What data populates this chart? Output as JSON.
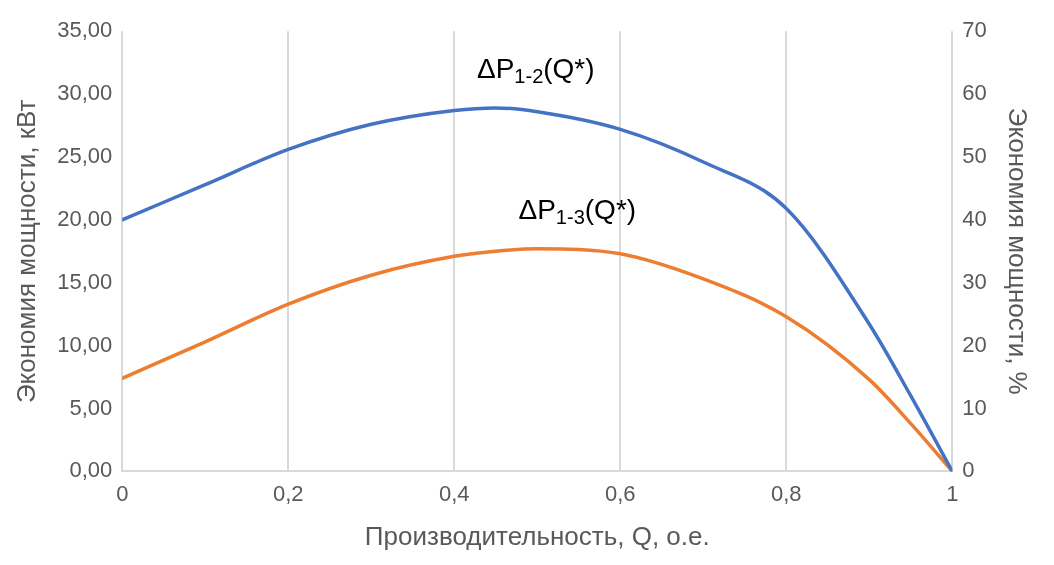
{
  "chart_data": {
    "type": "line",
    "xlabel": "Производительность, Q, о.е.",
    "ylabel": "Экономия мощности, кВт",
    "y2label": "Экономия мощности, %",
    "x": [
      0,
      0.1,
      0.2,
      0.3,
      0.4,
      0.45,
      0.5,
      0.6,
      0.7,
      0.8,
      0.9,
      0.95,
      1
    ],
    "series": [
      {
        "color": "#4472c4",
        "values": [
          20.0,
          22.8,
          25.6,
          27.6,
          28.7,
          28.9,
          28.6,
          27.2,
          24.6,
          20.9,
          11.7,
          6.0,
          0
        ]
      },
      {
        "color": "#ed7d31",
        "values": [
          7.4,
          10.3,
          13.3,
          15.6,
          17.1,
          17.5,
          17.7,
          17.3,
          15.3,
          12.3,
          7.3,
          3.8,
          0
        ]
      }
    ],
    "xlim": [
      0,
      1
    ],
    "xticks": [
      0,
      {
        "value": 0.2,
        "label": "0,2"
      },
      {
        "value": 0.4,
        "label": "0,4"
      },
      {
        "value": 0.6,
        "label": "0,6"
      },
      {
        "value": 0.8,
        "label": "0,8"
      },
      1
    ],
    "ylim": [
      0,
      35
    ],
    "yticks": [
      {
        "value": 0,
        "label": "0,00"
      },
      {
        "value": 5,
        "label": "5,00"
      },
      {
        "value": 10,
        "label": "10,00"
      },
      {
        "value": 15,
        "label": "15,00"
      },
      {
        "value": 20,
        "label": "20,00"
      },
      {
        "value": 25,
        "label": "25,00"
      },
      {
        "value": 30,
        "label": "30,00"
      },
      {
        "value": 35,
        "label": "35,00"
      }
    ],
    "y2lim": [
      0,
      70
    ],
    "y2ticks": [
      0,
      10,
      20,
      30,
      40,
      50,
      60,
      70
    ],
    "annotations": [
      "ΔP$_{1-2}$(Q*)",
      "ΔP$_{1-3}$(Q*)"
    ],
    "grid": "x",
    "legend": false,
    "marker": "none",
    "line_style": "solid"
  }
}
